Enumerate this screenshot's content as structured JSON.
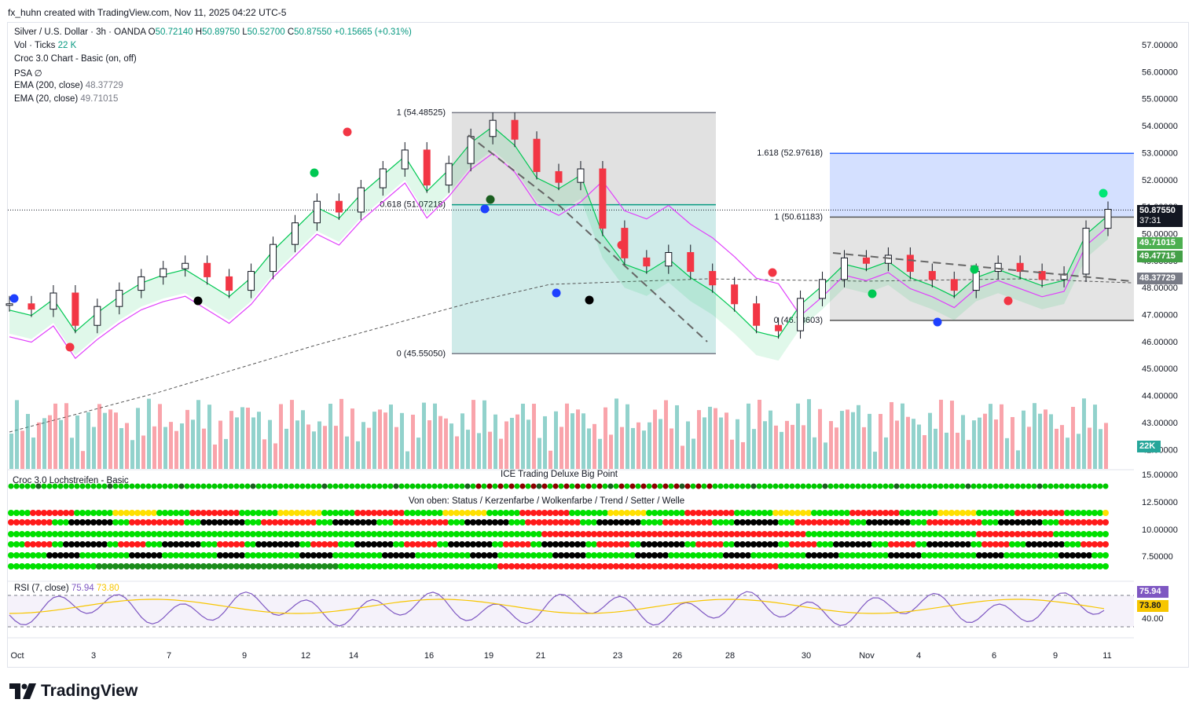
{
  "header": {
    "text": "fx_huhn created with TradingView.com, Nov 11, 2025 04:22 UTC-5"
  },
  "legend": {
    "symbol": "Silver / U.S. Dollar · 3h · OANDA",
    "o_label": "O",
    "o": "50.72140",
    "h_label": "H",
    "h": "50.89750",
    "l_label": "L",
    "l": "50.52700",
    "c_label": "C",
    "c": "50.87550",
    "change": "+0.15665 (+0.31%)",
    "vol_label": "Vol · Ticks",
    "vol_value": "22 K",
    "croc": "Croc 3.0 Chart - Basic (on, off)",
    "psa_label": "PSA",
    "psa_value": "∅",
    "ema200_label": "EMA (200, close)",
    "ema200_value": "48.37729",
    "ema20_label": "EMA (20, close)",
    "ema20_value": "49.71015"
  },
  "panes": {
    "lochstreifen": "Croc 3.0 Lochstreifen - Basic",
    "bigpoint": "ICE Trading Deluxe Big Point",
    "von_oben": "Von oben: Status / Kerzenfarbe / Wolkenfarbe / Trend / Setter / Welle",
    "rsi_label": "RSI (7, close)",
    "rsi_value": "75.94",
    "rsi_ma": "73.80"
  },
  "badges": {
    "price": "50.87550",
    "countdown": "37:31",
    "ema20": "49.71015",
    "cloud": "49.47715",
    "ema200": "48.37729",
    "vol": "22K",
    "rsi": "75.94",
    "rsi_ma": "73.80"
  },
  "fib_labels": {
    "left_1": "1 (54.48525)",
    "left_0618": "0.618 (51.07218)",
    "left_0": "0 (45.55050)",
    "right_1618": "1.618 (52.97618)",
    "right_1": "1 (50.61183)",
    "right_0": "0 (46.78603)"
  },
  "footer": {
    "brand": "TradingView"
  },
  "colors": {
    "up": "#089981",
    "down": "#f23645",
    "fib_blue": "#2962ff",
    "magenta": "#e040fb",
    "ema": "#00c853"
  },
  "chart_data": {
    "type": "candlestick",
    "title": "Silver / U.S. Dollar · 3h · OANDA",
    "price_axis_ticks": [
      "57.00000",
      "56.00000",
      "55.00000",
      "54.00000",
      "53.00000",
      "52.00000",
      "51.00000",
      "50.00000",
      "49.00000",
      "48.00000",
      "47.00000",
      "46.00000",
      "45.00000",
      "44.00000",
      "43.00000",
      "42.00000"
    ],
    "lower_axis_ticks": [
      "15.00000",
      "12.50000",
      "10.00000",
      "7.50000"
    ],
    "rsi_axis_ticks": [
      "40.00"
    ],
    "x_ticks": [
      "Oct",
      "3",
      "7",
      "9",
      "12",
      "14",
      "16",
      "19",
      "21",
      "23",
      "26",
      "28",
      "30",
      "Nov",
      "4",
      "6",
      "9",
      "11"
    ],
    "closes_approx": [
      47.4,
      47.2,
      47.8,
      46.6,
      47.3,
      47.9,
      48.4,
      48.7,
      48.9,
      48.4,
      47.9,
      48.6,
      49.6,
      50.4,
      51.2,
      50.8,
      51.7,
      52.4,
      53.1,
      51.8,
      52.6,
      53.6,
      54.2,
      53.5,
      52.3,
      51.9,
      52.4,
      50.2,
      49.1,
      48.8,
      49.3,
      48.6,
      48.1,
      47.4,
      46.6,
      46.4,
      47.6,
      48.3,
      49.1,
      48.9,
      49.2,
      48.6,
      48.3,
      47.9,
      48.6,
      48.9,
      48.6,
      48.3,
      48.5,
      50.2,
      50.9
    ],
    "fib_left": {
      "level_1": 54.48525,
      "level_0618": 51.07218,
      "level_0": 45.5505
    },
    "fib_right": {
      "level_1618": 52.97618,
      "level_1": 50.61183,
      "level_0": 46.78603
    },
    "last_price": 50.8755,
    "ema20": 49.71015,
    "ema200": 48.37729,
    "rsi": 75.94,
    "rsi_ma": 73.8
  }
}
